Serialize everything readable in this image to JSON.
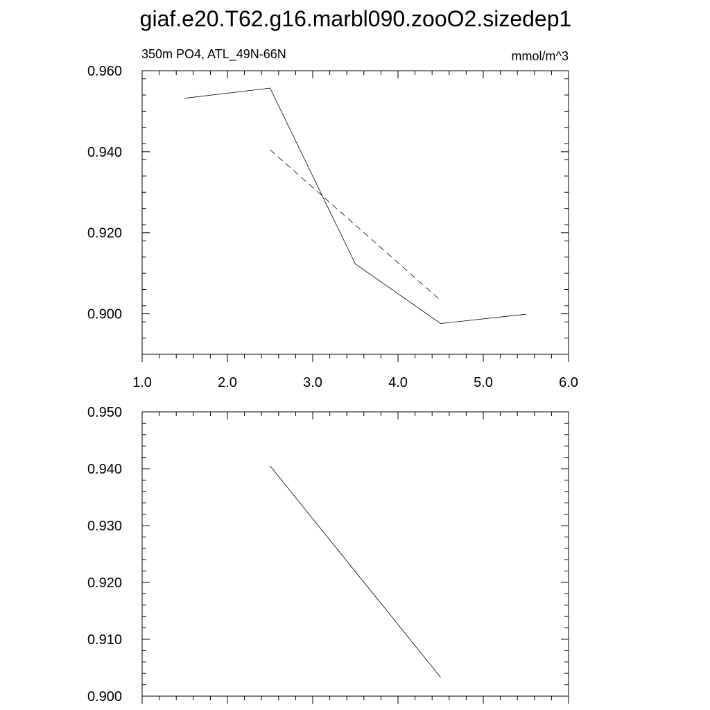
{
  "figure": {
    "title": "giaf.e20.T62.g16.marbl090.zooO2.sizedep1"
  },
  "chart_data": [
    {
      "type": "line",
      "subtitle_left": "350m PO4, ATL_49N-66N",
      "subtitle_right": "mmol/m^3",
      "xlim": [
        1.0,
        6.0
      ],
      "ylim": [
        0.89,
        0.96
      ],
      "x_ticks": [
        1.0,
        2.0,
        3.0,
        4.0,
        5.0,
        6.0
      ],
      "x_tick_labels": [
        "1.0",
        "2.0",
        "3.0",
        "4.0",
        "5.0",
        "6.0"
      ],
      "y_ticks": [
        0.9,
        0.92,
        0.94,
        0.96
      ],
      "y_tick_labels": [
        "0.900",
        "0.920",
        "0.940",
        "0.960"
      ],
      "grid": false,
      "series": [
        {
          "style": "solid",
          "x": [
            1.5,
            2.5,
            3.5,
            4.5,
            5.5
          ],
          "y": [
            0.9532,
            0.9557,
            0.9123,
            0.8976,
            0.8999
          ]
        },
        {
          "style": "dashed",
          "x": [
            2.5,
            3.5,
            4.5
          ],
          "y": [
            0.9405,
            0.9219,
            0.9033
          ]
        }
      ]
    },
    {
      "type": "line",
      "xlim": [
        1.0,
        6.0
      ],
      "ylim": [
        0.9,
        0.95
      ],
      "x_ticks": [
        1.0,
        2.0,
        3.0,
        4.0,
        5.0,
        6.0
      ],
      "y_ticks": [
        0.9,
        0.91,
        0.92,
        0.93,
        0.94,
        0.95
      ],
      "y_tick_labels": [
        "0.900",
        "0.910",
        "0.920",
        "0.930",
        "0.940",
        "0.950"
      ],
      "grid": false,
      "series": [
        {
          "style": "solid",
          "x": [
            2.5,
            4.5
          ],
          "y": [
            0.9405,
            0.9033
          ]
        }
      ]
    }
  ]
}
